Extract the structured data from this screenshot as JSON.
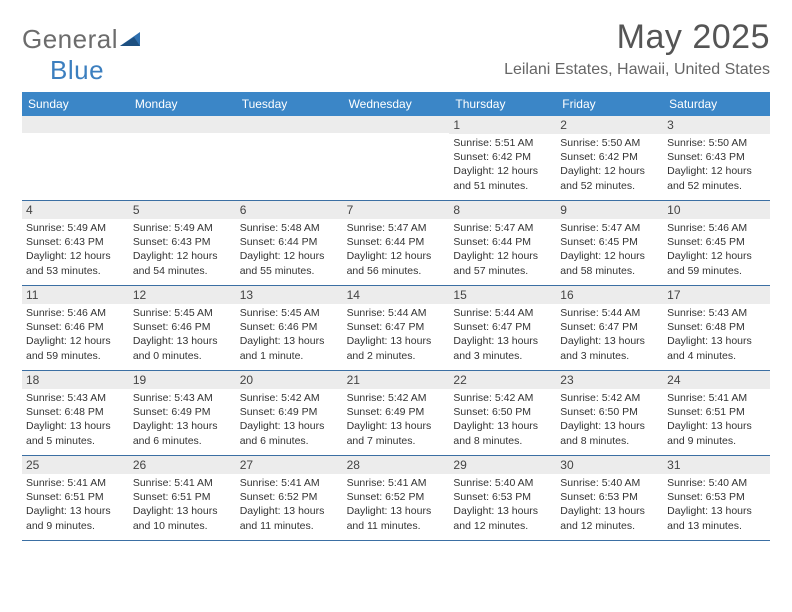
{
  "logo": {
    "word1": "General",
    "word2": "Blue"
  },
  "header": {
    "title": "May 2025",
    "location": "Leilani Estates, Hawaii, United States"
  },
  "colors": {
    "header_bg": "#3b86c7",
    "header_text": "#ffffff",
    "daynum_bg": "#ececec",
    "row_border": "#3b6fa3",
    "title_color": "#555555",
    "location_color": "#666666",
    "logo_gray": "#6c6c6c",
    "logo_blue": "#3c7fbf"
  },
  "weekdays": [
    "Sunday",
    "Monday",
    "Tuesday",
    "Wednesday",
    "Thursday",
    "Friday",
    "Saturday"
  ],
  "weeks": [
    [
      null,
      null,
      null,
      null,
      {
        "n": "1",
        "sr": "5:51 AM",
        "ss": "6:42 PM",
        "dl": "12 hours and 51 minutes."
      },
      {
        "n": "2",
        "sr": "5:50 AM",
        "ss": "6:42 PM",
        "dl": "12 hours and 52 minutes."
      },
      {
        "n": "3",
        "sr": "5:50 AM",
        "ss": "6:43 PM",
        "dl": "12 hours and 52 minutes."
      }
    ],
    [
      {
        "n": "4",
        "sr": "5:49 AM",
        "ss": "6:43 PM",
        "dl": "12 hours and 53 minutes."
      },
      {
        "n": "5",
        "sr": "5:49 AM",
        "ss": "6:43 PM",
        "dl": "12 hours and 54 minutes."
      },
      {
        "n": "6",
        "sr": "5:48 AM",
        "ss": "6:44 PM",
        "dl": "12 hours and 55 minutes."
      },
      {
        "n": "7",
        "sr": "5:47 AM",
        "ss": "6:44 PM",
        "dl": "12 hours and 56 minutes."
      },
      {
        "n": "8",
        "sr": "5:47 AM",
        "ss": "6:44 PM",
        "dl": "12 hours and 57 minutes."
      },
      {
        "n": "9",
        "sr": "5:47 AM",
        "ss": "6:45 PM",
        "dl": "12 hours and 58 minutes."
      },
      {
        "n": "10",
        "sr": "5:46 AM",
        "ss": "6:45 PM",
        "dl": "12 hours and 59 minutes."
      }
    ],
    [
      {
        "n": "11",
        "sr": "5:46 AM",
        "ss": "6:46 PM",
        "dl": "12 hours and 59 minutes."
      },
      {
        "n": "12",
        "sr": "5:45 AM",
        "ss": "6:46 PM",
        "dl": "13 hours and 0 minutes."
      },
      {
        "n": "13",
        "sr": "5:45 AM",
        "ss": "6:46 PM",
        "dl": "13 hours and 1 minute."
      },
      {
        "n": "14",
        "sr": "5:44 AM",
        "ss": "6:47 PM",
        "dl": "13 hours and 2 minutes."
      },
      {
        "n": "15",
        "sr": "5:44 AM",
        "ss": "6:47 PM",
        "dl": "13 hours and 3 minutes."
      },
      {
        "n": "16",
        "sr": "5:44 AM",
        "ss": "6:47 PM",
        "dl": "13 hours and 3 minutes."
      },
      {
        "n": "17",
        "sr": "5:43 AM",
        "ss": "6:48 PM",
        "dl": "13 hours and 4 minutes."
      }
    ],
    [
      {
        "n": "18",
        "sr": "5:43 AM",
        "ss": "6:48 PM",
        "dl": "13 hours and 5 minutes."
      },
      {
        "n": "19",
        "sr": "5:43 AM",
        "ss": "6:49 PM",
        "dl": "13 hours and 6 minutes."
      },
      {
        "n": "20",
        "sr": "5:42 AM",
        "ss": "6:49 PM",
        "dl": "13 hours and 6 minutes."
      },
      {
        "n": "21",
        "sr": "5:42 AM",
        "ss": "6:49 PM",
        "dl": "13 hours and 7 minutes."
      },
      {
        "n": "22",
        "sr": "5:42 AM",
        "ss": "6:50 PM",
        "dl": "13 hours and 8 minutes."
      },
      {
        "n": "23",
        "sr": "5:42 AM",
        "ss": "6:50 PM",
        "dl": "13 hours and 8 minutes."
      },
      {
        "n": "24",
        "sr": "5:41 AM",
        "ss": "6:51 PM",
        "dl": "13 hours and 9 minutes."
      }
    ],
    [
      {
        "n": "25",
        "sr": "5:41 AM",
        "ss": "6:51 PM",
        "dl": "13 hours and 9 minutes."
      },
      {
        "n": "26",
        "sr": "5:41 AM",
        "ss": "6:51 PM",
        "dl": "13 hours and 10 minutes."
      },
      {
        "n": "27",
        "sr": "5:41 AM",
        "ss": "6:52 PM",
        "dl": "13 hours and 11 minutes."
      },
      {
        "n": "28",
        "sr": "5:41 AM",
        "ss": "6:52 PM",
        "dl": "13 hours and 11 minutes."
      },
      {
        "n": "29",
        "sr": "5:40 AM",
        "ss": "6:53 PM",
        "dl": "13 hours and 12 minutes."
      },
      {
        "n": "30",
        "sr": "5:40 AM",
        "ss": "6:53 PM",
        "dl": "13 hours and 12 minutes."
      },
      {
        "n": "31",
        "sr": "5:40 AM",
        "ss": "6:53 PM",
        "dl": "13 hours and 13 minutes."
      }
    ]
  ],
  "labels": {
    "sunrise": "Sunrise:",
    "sunset": "Sunset:",
    "daylight": "Daylight:"
  }
}
